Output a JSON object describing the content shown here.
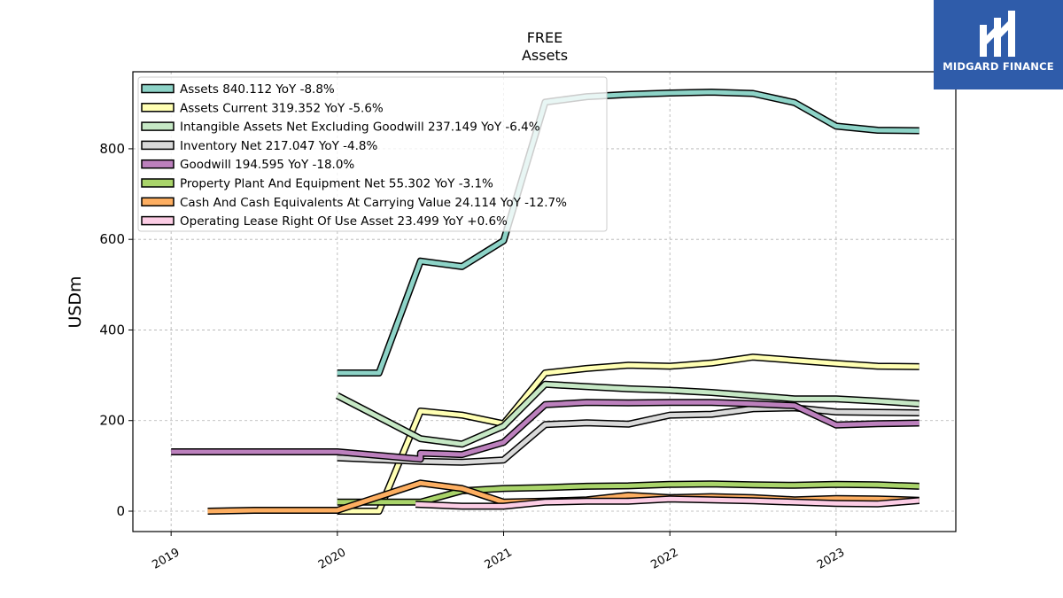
{
  "logo": {
    "text": "MIDGARD FINANCE",
    "icon": "midgard-logo-icon",
    "color": "#2f5caa"
  },
  "chart_data": {
    "type": "line",
    "title": "FREE",
    "subtitle": "Assets",
    "ylabel": "USDm",
    "xlabel": "",
    "xlim": [
      2018.77,
      2023.72
    ],
    "ylim": [
      -45,
      970
    ],
    "xticks": [
      2019,
      2020,
      2021,
      2022,
      2023
    ],
    "xtick_labels": [
      "2019",
      "2020",
      "2021",
      "2022",
      "2023"
    ],
    "yticks": [
      0,
      200,
      400,
      600,
      800
    ],
    "ytick_labels": [
      "0",
      "200",
      "400",
      "600",
      "800"
    ],
    "grid": true,
    "legend_position": "top-left",
    "series": [
      {
        "name": "Assets",
        "legend": "Assets  840.112 YoY -8.8%",
        "color": "#8dd3c7",
        "x": [
          2020.0,
          2020.25,
          2020.5,
          2020.75,
          2021.0,
          2021.25,
          2021.5,
          2021.75,
          2022.0,
          2022.25,
          2022.5,
          2022.75,
          2023.0,
          2023.25,
          2023.5
        ],
        "y": [
          305,
          305,
          552,
          540,
          597,
          903,
          915,
          920,
          923,
          925,
          922,
          902,
          850,
          841,
          840
        ]
      },
      {
        "name": "Assets Current",
        "legend": "Assets Current  319.352 YoY -5.6%",
        "color": "#ffffb3",
        "x": [
          2020.0,
          2020.25,
          2020.5,
          2020.75,
          2021.0,
          2021.25,
          2021.5,
          2021.75,
          2022.0,
          2022.25,
          2022.5,
          2022.75,
          2023.0,
          2023.25,
          2023.5
        ],
        "y": [
          0,
          0,
          221,
          212,
          193,
          305,
          315,
          322,
          320,
          327,
          340,
          333,
          326,
          320,
          319
        ]
      },
      {
        "name": "Intangible Assets Net Excluding Goodwill",
        "legend": "Intangible Assets Net Excluding Goodwill  237.149 YoY -6.4%",
        "color": "#c6e8c5",
        "x": [
          2020.0,
          2020.5,
          2020.75,
          2021.0,
          2021.25,
          2021.5,
          2021.75,
          2022.0,
          2022.25,
          2022.5,
          2022.75,
          2023.0,
          2023.25,
          2023.5
        ],
        "y": [
          255,
          160,
          148,
          188,
          280,
          275,
          270,
          267,
          262,
          255,
          248,
          248,
          243,
          237
        ]
      },
      {
        "name": "Inventory Net",
        "legend": "Inventory Net  217.047 YoY -4.8%",
        "color": "#d9d9d9",
        "x": [
          2020.0,
          2020.5,
          2020.75,
          2021.0,
          2021.25,
          2021.5,
          2021.75,
          2022.0,
          2022.25,
          2022.5,
          2022.75,
          2023.0,
          2023.25,
          2023.5
        ],
        "y": [
          118,
          110,
          108,
          113,
          191,
          195,
          192,
          212,
          214,
          226,
          228,
          219,
          218,
          217
        ]
      },
      {
        "name": "Goodwill",
        "legend": "Goodwill  194.595 YoY -18.0%",
        "color": "#bc80bd",
        "x": [
          2019.0,
          2019.5,
          2020.0,
          2020.5,
          2020.5,
          2020.75,
          2021.0,
          2021.25,
          2021.5,
          2021.75,
          2022.0,
          2022.25,
          2022.5,
          2022.75,
          2023.0,
          2023.25,
          2023.5
        ],
        "y": [
          131,
          131,
          131,
          115,
          128,
          125,
          152,
          235,
          240,
          239,
          240,
          240,
          237,
          233,
          190,
          193,
          194.6
        ]
      },
      {
        "name": "Property Plant And Equipment Net",
        "legend": "Property Plant And Equipment Net  55.302 YoY -3.1%",
        "color": "#a9d46a",
        "x": [
          2020.0,
          2020.5,
          2020.75,
          2021.0,
          2021.25,
          2021.5,
          2021.75,
          2022.0,
          2022.25,
          2022.5,
          2022.75,
          2023.0,
          2023.25,
          2023.5
        ],
        "y": [
          20,
          20,
          45,
          50,
          52,
          55,
          56,
          59,
          60,
          58,
          57,
          59,
          58,
          55
        ]
      },
      {
        "name": "Cash And Cash Equivalents At Carrying Value",
        "legend": "Cash And Cash Equivalents At Carrying Value  24.114 YoY -12.7%",
        "color": "#fdae61",
        "x": [
          2019.22,
          2019.5,
          2020.0,
          2020.5,
          2020.75,
          2021.0,
          2021.25,
          2021.5,
          2021.75,
          2022.0,
          2022.25,
          2022.5,
          2022.75,
          2023.0,
          2023.25,
          2023.5
        ],
        "y": [
          0,
          2,
          2,
          62,
          50,
          20,
          22,
          25,
          35,
          30,
          32,
          30,
          25,
          28,
          27,
          24
        ]
      },
      {
        "name": "Operating Lease Right Of Use Asset",
        "legend": "Operating Lease Right Of Use Asset  23.499 YoY +0.6%",
        "color": "#fccde5",
        "x": [
          2020.47,
          2020.75,
          2021.0,
          2021.25,
          2021.5,
          2021.75,
          2022.0,
          2022.25,
          2022.5,
          2022.75,
          2023.0,
          2023.25,
          2023.5
        ],
        "y": [
          15,
          11,
          11,
          20,
          22,
          22,
          27,
          25,
          23,
          20,
          17,
          16,
          23.5
        ]
      }
    ]
  }
}
